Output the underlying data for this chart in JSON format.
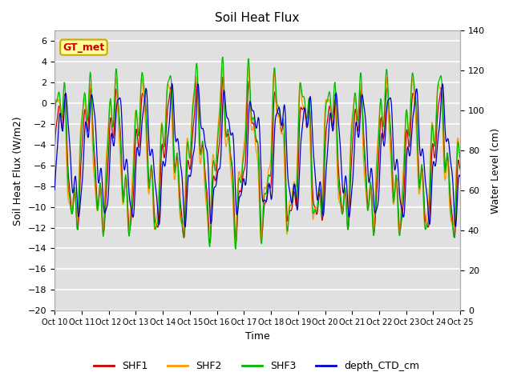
{
  "title": "Soil Heat Flux",
  "ylabel_left": "Soil Heat Flux (W/m2)",
  "ylabel_right": "Water Level (cm)",
  "xlabel": "Time",
  "ylim_left": [
    -20,
    7
  ],
  "ylim_right": [
    0,
    140
  ],
  "yticks_left": [
    -20,
    -18,
    -16,
    -14,
    -12,
    -10,
    -8,
    -6,
    -4,
    -2,
    0,
    2,
    4,
    6
  ],
  "yticks_right": [
    0,
    20,
    40,
    60,
    80,
    100,
    120,
    140
  ],
  "xtick_labels": [
    "Oct 10",
    "Oct 11",
    "Oct 12",
    "Oct 13",
    "Oct 14",
    "Oct 15",
    "Oct 16",
    "Oct 17",
    "Oct 18",
    "Oct 19",
    "Oct 20",
    "Oct 21",
    "Oct 22",
    "Oct 23",
    "Oct 24",
    "Oct 25"
  ],
  "colors": {
    "SHF1": "#cc0000",
    "SHF2": "#ff9900",
    "SHF3": "#00bb00",
    "depth_CTD_cm": "#0000cc"
  },
  "annotation_text": "GT_met",
  "annotation_color": "#cc0000",
  "annotation_bg": "#ffff99",
  "annotation_edge": "#ccaa00",
  "background_color": "#e0e0e0",
  "grid_color": "#ffffff",
  "n_days": 15,
  "points_per_day": 48
}
